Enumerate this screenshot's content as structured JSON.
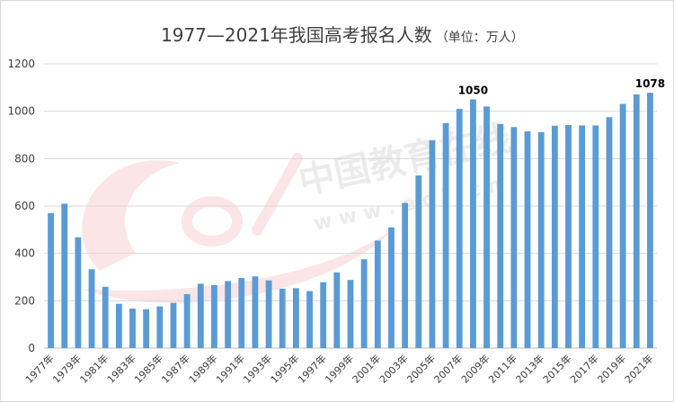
{
  "chart_data": {
    "type": "bar",
    "title": "1977—2021年我国高考报名人数",
    "title_unit": "（单位：万人）",
    "xlabel": "",
    "ylabel": "",
    "ylim": [
      0,
      1200
    ],
    "yticks": [
      0,
      200,
      400,
      600,
      800,
      1000,
      1200
    ],
    "grid": true,
    "legend": "none",
    "bar_color": "#5b9bd5",
    "categories": [
      "1977年",
      "1978年",
      "1979年",
      "1980年",
      "1981年",
      "1982年",
      "1983年",
      "1984年",
      "1985年",
      "1986年",
      "1987年",
      "1988年",
      "1989年",
      "1990年",
      "1991年",
      "1992年",
      "1993年",
      "1994年",
      "1995年",
      "1996年",
      "1997年",
      "1998年",
      "1999年",
      "2000年",
      "2001年",
      "2002年",
      "2003年",
      "2004年",
      "2005年",
      "2006年",
      "2007年",
      "2008年",
      "2009年",
      "2010年",
      "2011年",
      "2012年",
      "2013年",
      "2014年",
      "2015年",
      "2016年",
      "2017年",
      "2018年",
      "2019年",
      "2020年",
      "2021年"
    ],
    "tick_labels": [
      "1977年",
      "1979年",
      "1981年",
      "1983年",
      "1985年",
      "1987年",
      "1989年",
      "1991年",
      "1993年",
      "1995年",
      "1997年",
      "1999年",
      "2001年",
      "2003年",
      "2005年",
      "2007年",
      "2009年",
      "2011年",
      "2013年",
      "2015年",
      "2017年",
      "2019年",
      "2021年"
    ],
    "values": [
      570,
      610,
      468,
      333,
      259,
      187,
      167,
      164,
      176,
      191,
      228,
      272,
      266,
      283,
      296,
      303,
      286,
      251,
      253,
      241,
      278,
      320,
      288,
      375,
      454,
      510,
      613,
      729,
      877,
      950,
      1010,
      1050,
      1020,
      946,
      933,
      915,
      912,
      939,
      942,
      940,
      940,
      975,
      1031,
      1071,
      1078
    ],
    "data_labels": [
      {
        "category": "2008年",
        "text": "1050"
      },
      {
        "category": "2021年",
        "text": "1078"
      }
    ]
  },
  "watermark": {
    "text": "中国教育在线",
    "url_text": "w w w . e o l . c n",
    "logo_text": "eol"
  }
}
